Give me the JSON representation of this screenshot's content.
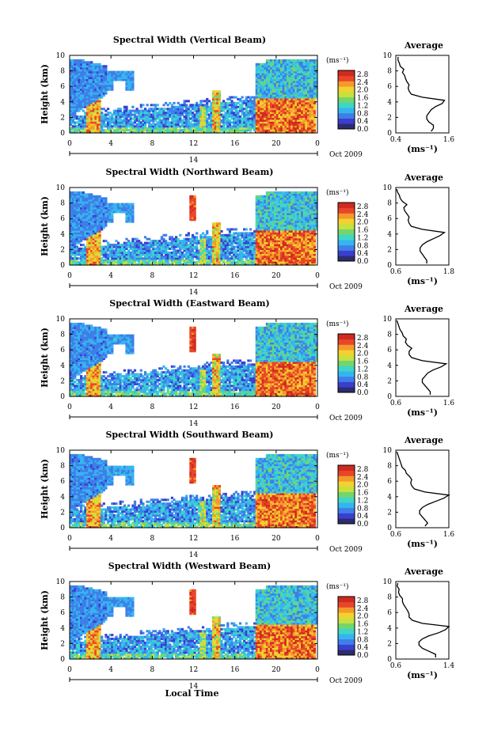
{
  "figure": {
    "bottom_xlabel": "Local Time",
    "date_label": "Oct 2009",
    "day_label": "14",
    "height_label": "Height (km)",
    "unit_label": "(ms⁻¹)",
    "avg_xlabel": "(ms⁻¹)",
    "avg_title": "Average"
  },
  "colorbar": {
    "tick_labels": [
      "0.0",
      "0.4",
      "0.8",
      "1.2",
      "1.6",
      "2.0",
      "2.4",
      "2.8"
    ],
    "vmin": 0.0,
    "vmax": 3.0,
    "colors": [
      "#2c2c6e",
      "#3a3fd0",
      "#3f7ee8",
      "#36b4f0",
      "#3fd6c8",
      "#74d66a",
      "#c8e040",
      "#f2d230",
      "#f59a2a",
      "#e8462a",
      "#d02a1e"
    ]
  },
  "chart_data": [
    {
      "type": "heatmap",
      "title": "Spectral Width (Vertical Beam)",
      "xlabel": "Local Time",
      "ylabel": "Height (km)",
      "xlim": [
        0,
        24
      ],
      "ylim": [
        0,
        10
      ],
      "xticks": [
        "0",
        "4",
        "8",
        "12",
        "16",
        "20",
        "0"
      ],
      "yticks": [
        "0",
        "2",
        "4",
        "6",
        "8",
        "10"
      ],
      "average": {
        "title": "Average",
        "xticks": [
          "0.4",
          "1.6"
        ],
        "xlim": [
          0.4,
          1.6
        ],
        "height": [
          0.2,
          0.6,
          1.0,
          1.4,
          1.8,
          2.2,
          2.6,
          3.0,
          3.4,
          3.8,
          4.2,
          4.6,
          5.0,
          5.4,
          5.8,
          6.2,
          6.6,
          7.0,
          7.4,
          7.8,
          8.2,
          8.6,
          9.0,
          9.4,
          9.8
        ],
        "width": [
          1.2,
          1.25,
          1.25,
          1.15,
          1.1,
          1.1,
          1.15,
          1.2,
          1.3,
          1.45,
          1.5,
          1.0,
          0.75,
          0.7,
          0.68,
          0.7,
          0.65,
          0.62,
          0.6,
          0.55,
          0.58,
          0.5,
          0.48,
          0.45,
          0.45
        ]
      }
    },
    {
      "type": "heatmap",
      "title": "Spectral Width (Northward Beam)",
      "xlabel": "Local Time",
      "ylabel": "Height (km)",
      "xlim": [
        0,
        24
      ],
      "ylim": [
        0,
        10
      ],
      "xticks": [
        "0",
        "4",
        "8",
        "12",
        "16",
        "20",
        "0"
      ],
      "yticks": [
        "0",
        "2",
        "4",
        "6",
        "8",
        "10"
      ],
      "average": {
        "title": "Average",
        "xticks": [
          "0.6",
          "1.8"
        ],
        "xlim": [
          0.6,
          1.8
        ],
        "height": [
          0.2,
          0.6,
          1.0,
          1.4,
          1.8,
          2.2,
          2.6,
          3.0,
          3.4,
          3.8,
          4.2,
          4.6,
          5.0,
          5.4,
          5.8,
          6.2,
          6.6,
          7.0,
          7.4,
          7.8,
          8.2,
          8.6,
          9.0,
          9.4,
          9.8
        ],
        "width": [
          1.3,
          1.3,
          1.25,
          1.2,
          1.15,
          1.15,
          1.2,
          1.3,
          1.45,
          1.6,
          1.7,
          1.2,
          0.95,
          0.9,
          0.88,
          0.9,
          0.85,
          0.8,
          0.78,
          0.85,
          0.75,
          0.7,
          0.68,
          0.64,
          0.62
        ]
      }
    },
    {
      "type": "heatmap",
      "title": "Spectral Width (Eastward Beam)",
      "xlabel": "Local Time",
      "ylabel": "Height (km)",
      "xlim": [
        0,
        24
      ],
      "ylim": [
        0,
        10
      ],
      "xticks": [
        "0",
        "4",
        "8",
        "12",
        "16",
        "20",
        "0"
      ],
      "yticks": [
        "0",
        "2",
        "4",
        "6",
        "8",
        "10"
      ],
      "average": {
        "title": "Average",
        "xticks": [
          "0.6",
          "1.6"
        ],
        "xlim": [
          0.6,
          1.6
        ],
        "height": [
          0.2,
          0.6,
          1.0,
          1.4,
          1.8,
          2.2,
          2.6,
          3.0,
          3.4,
          3.8,
          4.2,
          4.6,
          5.0,
          5.4,
          5.8,
          6.2,
          6.6,
          7.0,
          7.4,
          7.8,
          8.2,
          8.6,
          9.0,
          9.4,
          9.8
        ],
        "width": [
          1.25,
          1.25,
          1.2,
          1.15,
          1.1,
          1.1,
          1.15,
          1.2,
          1.3,
          1.45,
          1.55,
          1.1,
          0.9,
          0.85,
          0.85,
          0.9,
          0.82,
          0.78,
          0.8,
          0.74,
          0.72,
          0.68,
          0.66,
          0.64,
          0.62
        ]
      }
    },
    {
      "type": "heatmap",
      "title": "Spectral Width (Southward Beam)",
      "xlabel": "Local Time",
      "ylabel": "Height (km)",
      "xlim": [
        0,
        24
      ],
      "ylim": [
        0,
        10
      ],
      "xticks": [
        "0",
        "4",
        "8",
        "12",
        "16",
        "20",
        "0"
      ],
      "yticks": [
        "0",
        "2",
        "4",
        "6",
        "8",
        "10"
      ],
      "average": {
        "title": "Average",
        "xticks": [
          "0.6",
          "1.6"
        ],
        "xlim": [
          0.6,
          1.6
        ],
        "height": [
          0.2,
          0.6,
          1.0,
          1.4,
          1.8,
          2.2,
          2.6,
          3.0,
          3.4,
          3.8,
          4.2,
          4.6,
          5.0,
          5.4,
          5.8,
          6.2,
          6.6,
          7.0,
          7.4,
          7.8,
          8.2,
          8.6,
          9.0,
          9.4,
          9.8
        ],
        "width": [
          1.15,
          1.2,
          1.15,
          1.1,
          1.05,
          1.05,
          1.1,
          1.2,
          1.35,
          1.5,
          1.6,
          1.15,
          0.95,
          0.9,
          0.88,
          0.9,
          0.86,
          0.8,
          0.78,
          0.72,
          0.7,
          0.68,
          0.66,
          0.64,
          0.62
        ]
      }
    },
    {
      "type": "heatmap",
      "title": "Spectral Width (Westward Beam)",
      "xlabel": "Local Time",
      "ylabel": "Height (km)",
      "xlim": [
        0,
        24
      ],
      "ylim": [
        0,
        10
      ],
      "xticks": [
        "0",
        "4",
        "8",
        "12",
        "16",
        "20",
        "0"
      ],
      "yticks": [
        "0",
        "2",
        "4",
        "6",
        "8",
        "10"
      ],
      "average": {
        "title": "Average",
        "xticks": [
          "0.6",
          "1.4"
        ],
        "xlim": [
          0.6,
          1.4
        ],
        "height": [
          0.2,
          0.6,
          1.0,
          1.4,
          1.8,
          2.2,
          2.6,
          3.0,
          3.4,
          3.8,
          4.2,
          4.6,
          5.0,
          5.4,
          5.8,
          6.2,
          6.6,
          7.0,
          7.4,
          7.8,
          8.2,
          8.6,
          9.0,
          9.4,
          9.8
        ],
        "width": [
          1.2,
          1.2,
          1.1,
          1.0,
          0.95,
          0.95,
          1.0,
          1.1,
          1.25,
          1.35,
          1.4,
          1.0,
          0.85,
          0.8,
          0.8,
          0.78,
          0.75,
          0.72,
          0.7,
          0.7,
          0.66,
          0.64,
          0.65,
          0.62,
          0.63
        ]
      }
    }
  ]
}
